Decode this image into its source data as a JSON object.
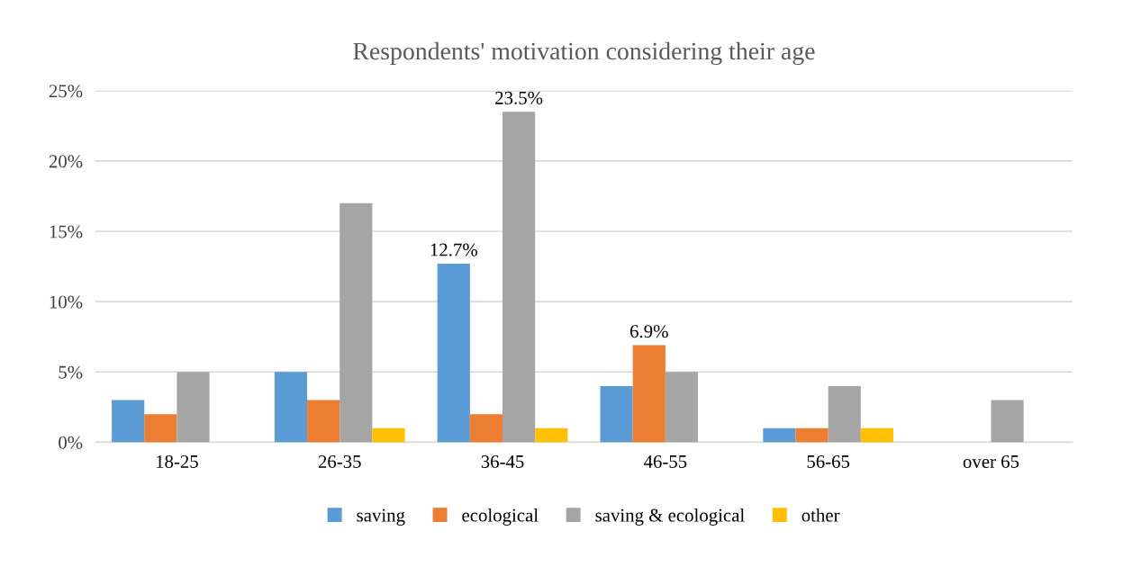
{
  "chart_data": {
    "type": "bar",
    "title": "Respondents' motivation considering their age",
    "categories": [
      "18-25",
      "26-35",
      "36-45",
      "46-55",
      "56-65",
      "over 65"
    ],
    "series": [
      {
        "name": "saving",
        "color": "#5b9bd5",
        "values": [
          3,
          5,
          12.7,
          4,
          1,
          0
        ],
        "value_labels": [
          null,
          null,
          "12.7%",
          null,
          null,
          null
        ]
      },
      {
        "name": "ecological",
        "color": "#ed7d31",
        "values": [
          2,
          3,
          2,
          6.9,
          1,
          0
        ],
        "value_labels": [
          null,
          null,
          null,
          "6.9%",
          null,
          null
        ]
      },
      {
        "name": "saving & ecological",
        "color": "#a5a5a5",
        "values": [
          5,
          17,
          23.5,
          5,
          4,
          3
        ],
        "value_labels": [
          null,
          null,
          "23.5%",
          null,
          null,
          null
        ]
      },
      {
        "name": "other",
        "color": "#ffc000",
        "values": [
          0,
          1,
          1,
          0,
          1,
          0
        ],
        "value_labels": [
          null,
          null,
          null,
          null,
          null,
          null
        ]
      }
    ],
    "ylim": [
      0,
      25
    ],
    "yticks": [
      {
        "value": 0,
        "label": "0%"
      },
      {
        "value": 5,
        "label": "5%"
      },
      {
        "value": 10,
        "label": "10%"
      },
      {
        "value": 15,
        "label": "15%"
      },
      {
        "value": 20,
        "label": "20%"
      },
      {
        "value": 25,
        "label": "25%"
      }
    ],
    "grid": "y",
    "legend": "bottom"
  }
}
